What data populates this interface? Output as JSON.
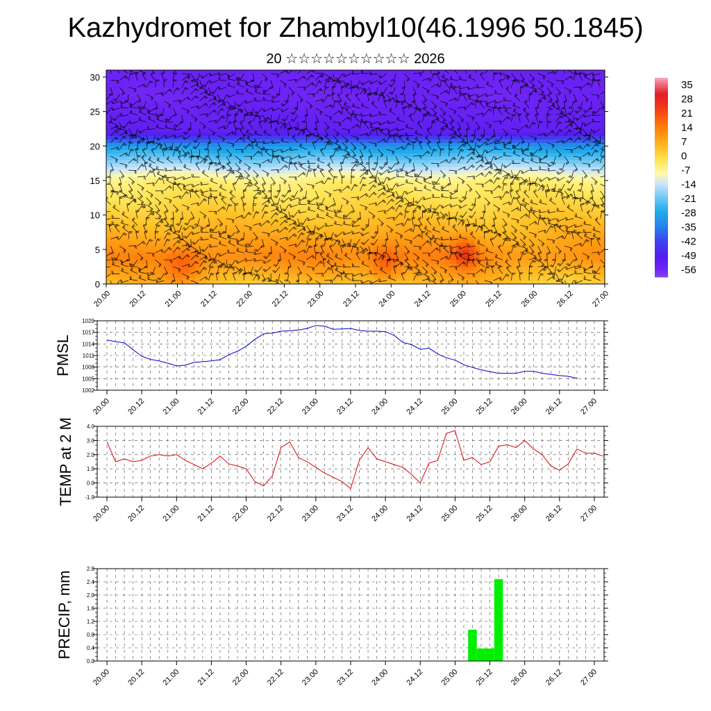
{
  "title": "Kazhydromet for Zhambyl10(46.1996 50.1845)",
  "subtitle": "20 ☆☆☆☆☆☆☆☆☆☆ 2026",
  "colors": {
    "pmsl_line": "#0000cc",
    "temp_line": "#dd0000",
    "precip_bar": "#00ee00",
    "wind_barb": "#000000"
  },
  "chart_data": [
    {
      "type": "heatmap",
      "name": "vertical-section",
      "x_ticks": [
        "20.00",
        "20.12",
        "21.00",
        "21.12",
        "22.00",
        "22.12",
        "23.00",
        "23.12",
        "24.00",
        "24.12",
        "25.00",
        "25.12",
        "26.00",
        "26.12",
        "27.00"
      ],
      "ylim": [
        0,
        31
      ],
      "y_ticks": [
        "0",
        "5",
        "10",
        "15",
        "20",
        "25",
        "30"
      ],
      "colorbar_labels": [
        "35",
        "28",
        "21",
        "14",
        "7",
        "0",
        "-7",
        "-14",
        "-21",
        "-28",
        "-35",
        "-42",
        "-49",
        "-56"
      ],
      "colorbar_range": [
        -60,
        38
      ],
      "overlay": "wind barbs"
    },
    {
      "type": "line",
      "name": "pmsl",
      "ylabel": "PMSL",
      "ylim": [
        1002,
        1020
      ],
      "y_ticks": [
        "1020",
        "1017",
        "1014",
        "1011",
        "1008",
        "1005",
        "1002"
      ],
      "x_ticks": [
        "20.00",
        "20.12",
        "21.00",
        "21.12",
        "22.00",
        "22.12",
        "23.00",
        "23.12",
        "24.00",
        "24.12",
        "25.00",
        "25.12",
        "26.00",
        "26.12",
        "27.00"
      ],
      "x_step_hours": 3,
      "values": [
        1015.0,
        1014.6,
        1014.3,
        1012.5,
        1010.8,
        1010.0,
        1009.6,
        1009.0,
        1008.3,
        1008.5,
        1009.2,
        1009.4,
        1009.6,
        1009.9,
        1011.2,
        1012.1,
        1013.4,
        1015.2,
        1016.6,
        1016.8,
        1017.3,
        1017.4,
        1017.6,
        1018.0,
        1018.8,
        1018.6,
        1017.8,
        1017.9,
        1018.0,
        1017.5,
        1017.3,
        1017.3,
        1017.2,
        1016.2,
        1014.4,
        1013.8,
        1012.6,
        1012.9,
        1011.4,
        1010.4,
        1009.8,
        1008.6,
        1007.9,
        1007.3,
        1006.8,
        1006.4,
        1006.4,
        1006.4,
        1006.9,
        1006.9,
        1006.4,
        1006.1,
        1005.8,
        1005.6,
        1005.1
      ]
    },
    {
      "type": "line",
      "name": "temp-2m",
      "ylabel": "TEMP at 2 M",
      "ylim": [
        -1.0,
        4.0
      ],
      "y_ticks": [
        "4.0",
        "3.0",
        "2.0",
        "1.0",
        "0.0",
        "-1.0"
      ],
      "x_ticks": [
        "20.00",
        "20.12",
        "21.00",
        "21.12",
        "22.00",
        "22.12",
        "23.00",
        "23.12",
        "24.00",
        "24.12",
        "25.00",
        "25.12",
        "26.00",
        "26.12",
        "27.00"
      ],
      "x_step_hours": 3,
      "values": [
        2.9,
        1.5,
        1.7,
        1.5,
        1.6,
        1.9,
        2.0,
        1.9,
        2.0,
        1.6,
        1.3,
        1.0,
        1.4,
        1.9,
        1.35,
        1.2,
        1.0,
        0.1,
        -0.2,
        0.5,
        2.5,
        2.9,
        1.8,
        1.5,
        1.1,
        0.7,
        0.4,
        0.1,
        -0.4,
        1.6,
        2.5,
        1.7,
        1.5,
        1.3,
        1.1,
        0.6,
        0.0,
        1.4,
        1.6,
        3.5,
        3.7,
        1.6,
        1.8,
        1.3,
        1.5,
        2.6,
        2.7,
        2.5,
        3.0,
        2.4,
        2.0,
        1.2,
        0.9,
        1.35,
        2.4,
        2.1,
        2.1,
        1.9
      ]
    },
    {
      "type": "bar",
      "name": "precip",
      "ylabel": "PRECIP, mm",
      "ylim": [
        0,
        2.8
      ],
      "y_ticks": [
        "2.8",
        "2.4",
        "2.0",
        "1.6",
        "1.2",
        "0.8",
        "0.4",
        "0.0"
      ],
      "x_ticks": [
        "20.00",
        "20.12",
        "21.00",
        "21.12",
        "22.00",
        "22.12",
        "23.00",
        "23.12",
        "24.00",
        "24.12",
        "25.00",
        "25.12",
        "26.00",
        "26.12",
        "27.00"
      ],
      "x_step_hours": 3,
      "values": [
        0,
        0,
        0,
        0,
        0,
        0,
        0,
        0,
        0,
        0,
        0,
        0,
        0,
        0,
        0,
        0,
        0,
        0,
        0,
        0,
        0,
        0,
        0,
        0,
        0,
        0,
        0,
        0,
        0,
        0,
        0,
        0,
        0,
        0,
        0,
        0,
        0,
        0,
        0,
        0,
        0,
        0,
        0.95,
        0.38,
        0.38,
        2.48,
        0,
        0,
        0,
        0,
        0,
        0,
        0,
        0,
        0,
        0
      ]
    }
  ]
}
